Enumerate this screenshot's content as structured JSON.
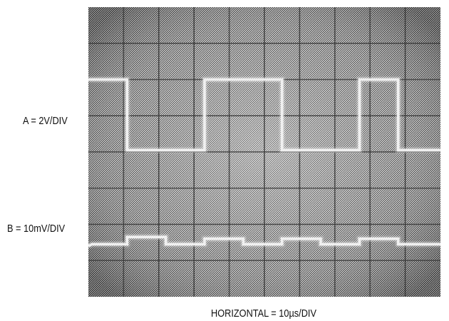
{
  "labels": {
    "channel_a": "A = 2V/DIV",
    "channel_b": "B = 10mV/DIV",
    "horizontal": "HORIZONTAL = 10µs/DIV"
  },
  "colors": {
    "screen_dark": "#2b2b2b",
    "screen_light": "#9a9a9a",
    "grid": "#3a3a3a",
    "trace": "#f2f2f2"
  },
  "chart_data": {
    "type": "line",
    "title": "",
    "xlabel": "HORIZONTAL = 10µs/DIV",
    "grid": true,
    "divisions": {
      "x": 10,
      "y": 8
    },
    "xlim": [
      0,
      10
    ],
    "ylim": [
      -4,
      4
    ],
    "series": [
      {
        "name": "A = 2V/DIV",
        "x": [
          0,
          1.1,
          1.1,
          2.2,
          2.2,
          3.3,
          3.3,
          4.4,
          4.4,
          5.5,
          5.5,
          6.6,
          6.6,
          7.7,
          7.7,
          8.8,
          8.8,
          10
        ],
        "y": [
          2.0,
          2.0,
          0.05,
          0.05,
          0.05,
          0.05,
          2.0,
          2.0,
          2.0,
          2.0,
          0.05,
          0.05,
          0.05,
          0.05,
          2.0,
          2.0,
          0.05,
          0.05
        ]
      },
      {
        "name": "B = 10mV/DIV",
        "x": [
          0,
          0.1,
          1.1,
          1.1,
          2.2,
          2.2,
          3.3,
          3.3,
          4.4,
          4.4,
          5.5,
          5.5,
          6.6,
          6.6,
          7.7,
          7.7,
          8.8,
          8.8,
          10
        ],
        "y": [
          -2.6,
          -2.55,
          -2.55,
          -2.35,
          -2.35,
          -2.55,
          -2.55,
          -2.4,
          -2.4,
          -2.55,
          -2.55,
          -2.4,
          -2.4,
          -2.55,
          -2.55,
          -2.4,
          -2.4,
          -2.55,
          -2.55
        ]
      }
    ]
  }
}
